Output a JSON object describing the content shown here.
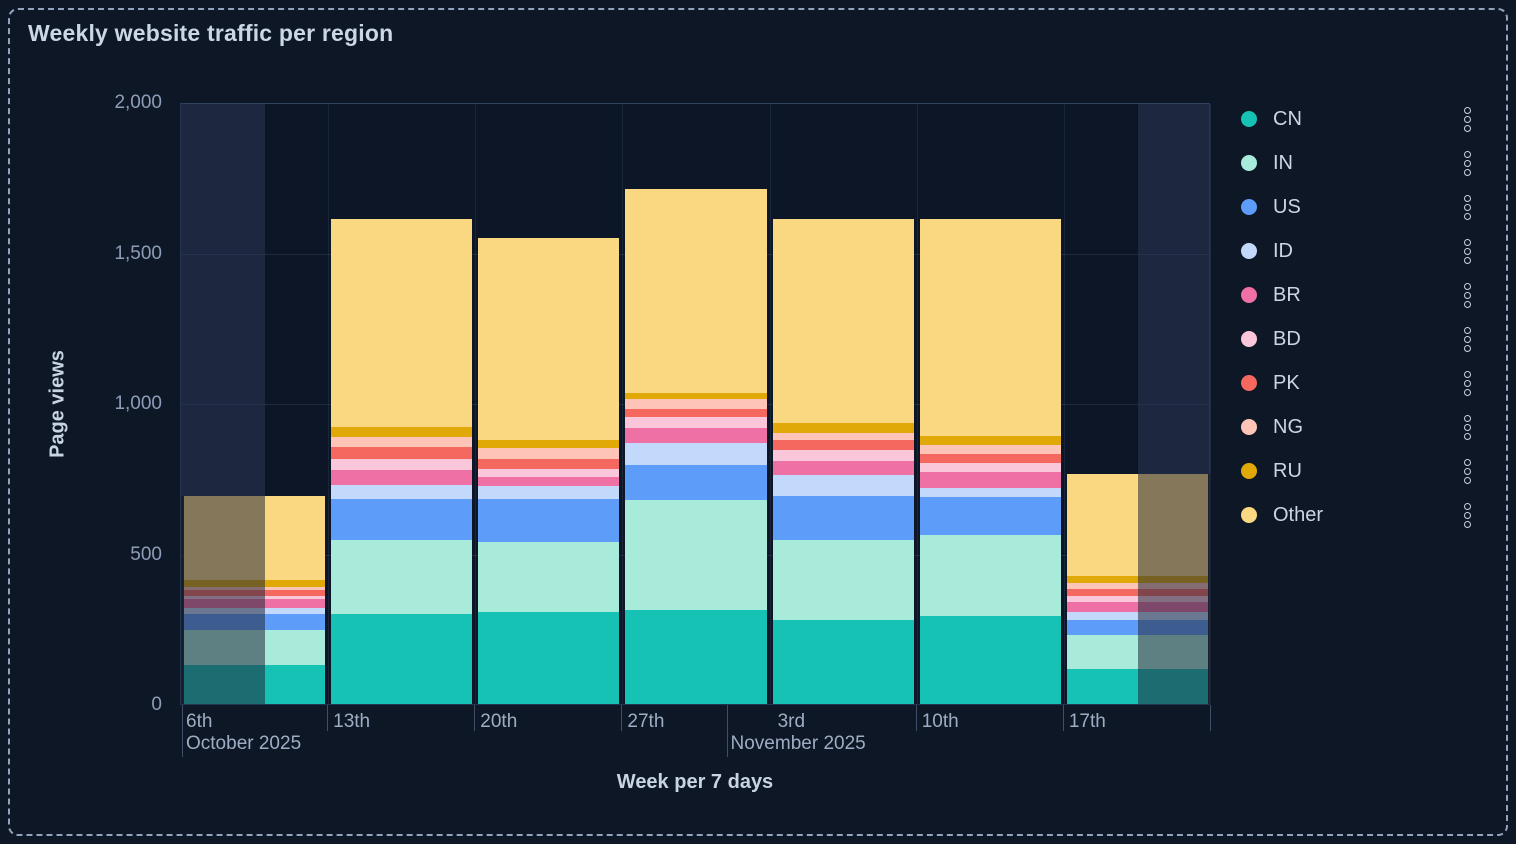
{
  "title": "Weekly website traffic per region",
  "y_axis": {
    "label": "Page views",
    "tick_labels": [
      "0",
      "500",
      "1,000",
      "1,500",
      "2,000"
    ],
    "tick_values": [
      0,
      500,
      1000,
      1500,
      2000
    ]
  },
  "x_axis": {
    "label": "Week per 7 days",
    "day_ticks": [
      "6th",
      "13th",
      "20th",
      "27th",
      "3rd",
      "10th",
      "17th"
    ],
    "month_labels": [
      "October 2025",
      "November 2025"
    ]
  },
  "legend": {
    "menu_icon": "kebab-vertical-dots"
  },
  "chart_data": {
    "type": "bar",
    "stacked": true,
    "title": "Weekly website traffic per region",
    "xlabel": "Week per 7 days",
    "ylabel": "Page views",
    "ylim": [
      0,
      2000
    ],
    "grid": true,
    "legend_position": "right",
    "categories": [
      "Oct 6",
      "Oct 13",
      "Oct 20",
      "Oct 27",
      "Nov 3",
      "Nov 10",
      "Nov 17"
    ],
    "series": [
      {
        "name": "CN",
        "color": "#16c2b3",
        "values": [
          130,
          300,
          305,
          313,
          278,
          293,
          116
        ]
      },
      {
        "name": "IN",
        "color": "#a9ebda",
        "values": [
          115,
          245,
          233,
          365,
          266,
          267,
          114
        ]
      },
      {
        "name": "US",
        "color": "#5d9cf8",
        "values": [
          55,
          135,
          142,
          116,
          146,
          127,
          48
        ]
      },
      {
        "name": "ID",
        "color": "#c3d9fb",
        "values": [
          20,
          47,
          44,
          72,
          72,
          32,
          27
        ]
      },
      {
        "name": "BR",
        "color": "#ee70a4",
        "values": [
          30,
          50,
          31,
          52,
          44,
          51,
          33
        ]
      },
      {
        "name": "BD",
        "color": "#f9c6da",
        "values": [
          10,
          37,
          27,
          37,
          39,
          30,
          20
        ]
      },
      {
        "name": "PK",
        "color": "#f5685f",
        "values": [
          20,
          39,
          33,
          24,
          31,
          30,
          25
        ]
      },
      {
        "name": "NG",
        "color": "#fdc4b7",
        "values": [
          8,
          33,
          37,
          34,
          24,
          31,
          19
        ]
      },
      {
        "name": "RU",
        "color": "#e1a908",
        "values": [
          25,
          34,
          25,
          21,
          35,
          28,
          22
        ]
      },
      {
        "name": "Other",
        "color": "#fad781",
        "values": [
          277,
          690,
          673,
          676,
          675,
          721,
          341
        ]
      }
    ],
    "totals": [
      690,
      1610,
      1550,
      1710,
      1610,
      1610,
      765
    ],
    "out_of_range_shading": [
      {
        "bar_index": 0,
        "from": 0.0,
        "to": 0.574
      },
      {
        "bar_index": 6,
        "from": 0.506,
        "to": 1.0
      }
    ]
  }
}
